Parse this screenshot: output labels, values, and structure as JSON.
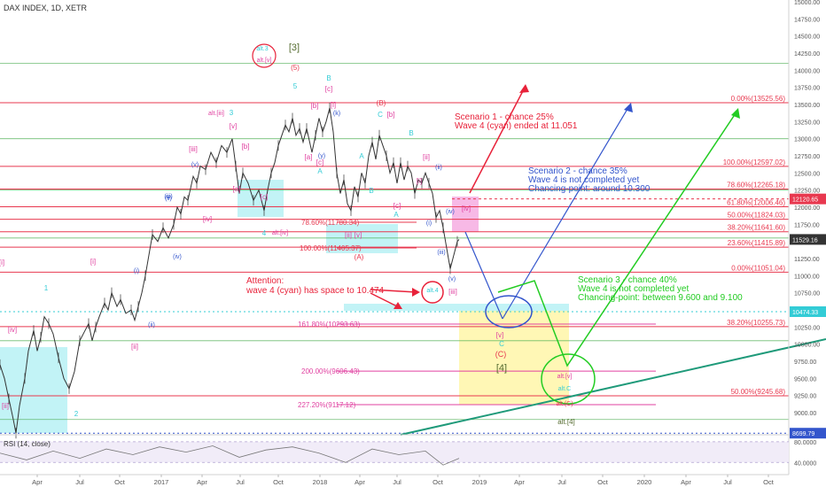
{
  "header": {
    "title": "DAX INDEX, 1D, XETR"
  },
  "colors": {
    "fib": "#e8384f",
    "ma": "#4caf50",
    "cyan": "#33ccd6",
    "magenta": "#e040a0",
    "red": "#e8223a",
    "blue": "#3355cc",
    "green": "#22cc22",
    "teal": "#1f9a7a",
    "price": "#333333",
    "cyan_box": "#a8eef2",
    "yellow_box": "#fff6a8",
    "pink_box": "#f5a8e0"
  },
  "chart_data": {
    "type": "line",
    "title": "DAX INDEX, 1D, XETR",
    "x_ticks": [
      "Apr",
      "Jul",
      "Oct",
      "2017",
      "Apr",
      "Jul",
      "Oct",
      "2018",
      "Apr",
      "Jul",
      "Oct",
      "2019",
      "Apr",
      "Jul",
      "Oct",
      "2020",
      "Apr",
      "Jul",
      "Oct"
    ],
    "y_ticks": [
      "15000.00",
      "14750.00",
      "14500.00",
      "14250.00",
      "14000.00",
      "13750.00",
      "13500.00",
      "13250.00",
      "13000.00",
      "12750.00",
      "12500.00",
      "12250.00",
      "12000.00",
      "11750.00",
      "11500.00",
      "11250.00",
      "11000.00",
      "10750.00",
      "10500.00",
      "10250.00",
      "10000.00",
      "9750.00",
      "9500.00",
      "9250.00",
      "9000.00"
    ],
    "ylim": [
      8600,
      15000
    ],
    "price_badges": [
      {
        "text": "12120.65",
        "value": 12120.65,
        "color": "#e8384f"
      },
      {
        "text": "11529.16",
        "value": 11529.16,
        "color": "#333333"
      },
      {
        "text": "10474.33",
        "value": 10474.33,
        "color": "#33ccd6"
      },
      {
        "text": "8699.79",
        "value": 8699.79,
        "color": "#3355cc"
      }
    ],
    "price_path": [
      [
        0,
        9700
      ],
      [
        5,
        9500
      ],
      [
        10,
        9200
      ],
      [
        15,
        8900
      ],
      [
        18,
        8700
      ],
      [
        22,
        9100
      ],
      [
        28,
        9500
      ],
      [
        32,
        9900
      ],
      [
        38,
        10200
      ],
      [
        42,
        9900
      ],
      [
        46,
        10100
      ],
      [
        50,
        10400
      ],
      [
        55,
        10300
      ],
      [
        60,
        10150
      ],
      [
        66,
        9800
      ],
      [
        72,
        9500
      ],
      [
        78,
        9350
      ],
      [
        84,
        9600
      ],
      [
        90,
        10050
      ],
      [
        96,
        10200
      ],
      [
        100,
        10300
      ],
      [
        104,
        10050
      ],
      [
        108,
        10250
      ],
      [
        112,
        10400
      ],
      [
        118,
        10600
      ],
      [
        122,
        10500
      ],
      [
        126,
        10750
      ],
      [
        132,
        10550
      ],
      [
        136,
        10650
      ],
      [
        142,
        10450
      ],
      [
        148,
        10500
      ],
      [
        152,
        10350
      ],
      [
        156,
        10550
      ],
      [
        160,
        10750
      ],
      [
        164,
        11000
      ],
      [
        168,
        11300
      ],
      [
        172,
        11600
      ],
      [
        178,
        11500
      ],
      [
        184,
        11700
      ],
      [
        190,
        11550
      ],
      [
        196,
        11750
      ],
      [
        200,
        12000
      ],
      [
        204,
        11900
      ],
      [
        208,
        12150
      ],
      [
        212,
        12100
      ],
      [
        218,
        12450
      ],
      [
        222,
        12350
      ],
      [
        226,
        12600
      ],
      [
        232,
        12550
      ],
      [
        238,
        12800
      ],
      [
        244,
        12650
      ],
      [
        250,
        12900
      ],
      [
        256,
        12800
      ],
      [
        262,
        13000
      ],
      [
        266,
        12600
      ],
      [
        270,
        12200
      ],
      [
        274,
        12500
      ],
      [
        280,
        12350
      ],
      [
        286,
        12100
      ],
      [
        292,
        12250
      ],
      [
        298,
        11950
      ],
      [
        302,
        12250
      ],
      [
        306,
        12500
      ],
      [
        310,
        12650
      ],
      [
        314,
        12900
      ],
      [
        318,
        13050
      ],
      [
        322,
        13200
      ],
      [
        326,
        13100
      ],
      [
        330,
        13300
      ],
      [
        334,
        13050
      ],
      [
        338,
        13150
      ],
      [
        342,
        12950
      ],
      [
        346,
        13150
      ],
      [
        352,
        12800
      ],
      [
        356,
        13050
      ],
      [
        360,
        13300
      ],
      [
        364,
        13100
      ],
      [
        368,
        13250
      ],
      [
        372,
        13450
      ],
      [
        376,
        13100
      ],
      [
        380,
        12500
      ],
      [
        384,
        12200
      ],
      [
        388,
        12400
      ],
      [
        392,
        12050
      ],
      [
        396,
        11950
      ],
      [
        400,
        12300
      ],
      [
        404,
        12150
      ],
      [
        408,
        12500
      ],
      [
        412,
        12350
      ],
      [
        416,
        12750
      ],
      [
        420,
        12950
      ],
      [
        424,
        12700
      ],
      [
        428,
        13050
      ],
      [
        432,
        12900
      ],
      [
        436,
        12750
      ],
      [
        440,
        12500
      ],
      [
        444,
        12650
      ],
      [
        448,
        12350
      ],
      [
        452,
        12650
      ],
      [
        456,
        12400
      ],
      [
        460,
        12600
      ],
      [
        464,
        12500
      ],
      [
        468,
        12200
      ],
      [
        472,
        12400
      ],
      [
        476,
        12350
      ],
      [
        480,
        12500
      ],
      [
        484,
        12350
      ],
      [
        488,
        12200
      ],
      [
        492,
        11850
      ],
      [
        496,
        11950
      ],
      [
        500,
        11700
      ],
      [
        504,
        11400
      ],
      [
        508,
        11100
      ],
      [
        512,
        11300
      ],
      [
        516,
        11500
      ],
      [
        518,
        11529
      ]
    ],
    "rsi_path": [
      [
        0,
        58
      ],
      [
        30,
        45
      ],
      [
        60,
        62
      ],
      [
        90,
        48
      ],
      [
        120,
        66
      ],
      [
        150,
        55
      ],
      [
        180,
        70
      ],
      [
        210,
        60
      ],
      [
        240,
        72
      ],
      [
        270,
        50
      ],
      [
        300,
        64
      ],
      [
        330,
        70
      ],
      [
        360,
        58
      ],
      [
        390,
        40
      ],
      [
        420,
        66
      ],
      [
        450,
        55
      ],
      [
        480,
        62
      ],
      [
        500,
        35
      ],
      [
        518,
        48
      ]
    ],
    "fib_levels": [
      {
        "label": "0.00%(13525.56)",
        "value": 13525.56,
        "x1": 365,
        "color": "#e8384f"
      },
      {
        "label": "100.00%(12597.02)",
        "value": 12597.02,
        "x1": 505,
        "color": "#e8384f"
      },
      {
        "label": "78.60%(12265.18)",
        "value": 12265.18,
        "x1": 505,
        "color": "#e8384f"
      },
      {
        "label": "61.80%(12006.46)",
        "value": 12006.46,
        "x1": 505,
        "color": "#e8384f"
      },
      {
        "label": "50.00%(11824.03)",
        "value": 11824.03,
        "x1": 505,
        "color": "#e8384f"
      },
      {
        "label": "38.20%(11641.60)",
        "value": 11641.6,
        "x1": 505,
        "color": "#e8384f"
      },
      {
        "label": "23.60%(11415.89)",
        "value": 11415.89,
        "x1": 505,
        "color": "#e8384f"
      },
      {
        "label": "0.00%(11051.04)",
        "value": 11051.04,
        "x1": 480,
        "color": "#e8384f"
      },
      {
        "label": "38.20%(10255.73)",
        "value": 10255.73,
        "x1": 160,
        "color": "#e8384f"
      },
      {
        "label": "50.00%(9245.68)",
        "value": 9245.68,
        "x1": 160,
        "color": "#e8384f"
      }
    ],
    "ext_levels": [
      {
        "label": "78.60%(11780.34)",
        "value": 11780.34,
        "x0": 380,
        "x1": 470,
        "lx": 340,
        "color": "#e8384f"
      },
      {
        "label": "100.00%(11405.37)",
        "value": 11405.37,
        "x0": 380,
        "x1": 470,
        "lx": 338,
        "color": "#e8384f"
      },
      {
        "label": "161.80%(10293.63)",
        "value": 10293.63,
        "x0": 380,
        "x1": 740,
        "lx": 336,
        "color": "#e040a0"
      },
      {
        "label": "200.00%(9606.43)",
        "value": 9606.43,
        "x0": 380,
        "x1": 740,
        "lx": 340,
        "color": "#e040a0"
      },
      {
        "label": "227.20%(9117.12)",
        "value": 9117.12,
        "x0": 380,
        "x1": 740,
        "lx": 336,
        "color": "#e040a0"
      }
    ],
    "green_levels": [
      14100,
      13000,
      12250,
      11550,
      10050,
      8900
    ],
    "scenarios": [
      {
        "lines": [
          "Scenario 1 - chance 25%",
          "Wave 4 (cyan) ended at 11.051"
        ],
        "x": 513,
        "y": 135,
        "color": "#e8223a"
      },
      {
        "lines": [
          "Scenario 2 - chance 35%",
          "Wave 4 is not completed yet",
          "Chancing-point: around 10.300"
        ],
        "x": 596,
        "y": 196,
        "color": "#3355cc"
      },
      {
        "lines": [
          "Scenario 3 - chance 40%",
          "Wave 4 is not completed yet",
          "Chancing-point: between 9.600 and 9.100"
        ],
        "x": 652,
        "y": 319,
        "color": "#22cc22"
      }
    ],
    "attention": {
      "lines": [
        "Attention:",
        "wave 4 (cyan) has space to 10.474"
      ],
      "x": 278,
      "y": 320,
      "color": "#e8223a"
    },
    "wave_labels": [
      {
        "t": "[3]",
        "x": 332,
        "y": 57,
        "c": "#556b2f",
        "s": 11
      },
      {
        "t": "alt.3",
        "x": 296,
        "y": 57,
        "c": "#33ccd6",
        "s": 7
      },
      {
        "t": "alt.[v]",
        "x": 298,
        "y": 70,
        "c": "#e040a0",
        "s": 7
      },
      {
        "t": "(5)",
        "x": 333,
        "y": 79,
        "c": "#e8384f",
        "s": 8
      },
      {
        "t": "5",
        "x": 333,
        "y": 100,
        "c": "#33ccd6",
        "s": 8
      },
      {
        "t": "B",
        "x": 371,
        "y": 91,
        "c": "#33ccd6",
        "s": 8
      },
      {
        "t": "[c]",
        "x": 371,
        "y": 103,
        "c": "#e040a0",
        "s": 8
      },
      {
        "t": "(B)",
        "x": 430,
        "y": 119,
        "c": "#e8384f",
        "s": 8
      },
      {
        "t": "C",
        "x": 429,
        "y": 132,
        "c": "#33ccd6",
        "s": 8
      },
      {
        "t": "[b]",
        "x": 441,
        "y": 132,
        "c": "#e040a0",
        "s": 8
      },
      {
        "t": "B",
        "x": 464,
        "y": 153,
        "c": "#33ccd6",
        "s": 8
      },
      {
        "t": "alt.[iii]",
        "x": 244,
        "y": 130,
        "c": "#e040a0",
        "s": 7
      },
      {
        "t": "3",
        "x": 261,
        "y": 130,
        "c": "#33ccd6",
        "s": 8
      },
      {
        "t": "[v]",
        "x": 263,
        "y": 145,
        "c": "#e040a0",
        "s": 8
      },
      {
        "t": "[iii]",
        "x": 218,
        "y": 171,
        "c": "#e040a0",
        "s": 8
      },
      {
        "t": "(v)",
        "x": 220,
        "y": 188,
        "c": "#3355cc",
        "s": 7
      },
      {
        "t": "[b]",
        "x": 277,
        "y": 168,
        "c": "#e040a0",
        "s": 8
      },
      {
        "t": "[a]",
        "x": 267,
        "y": 216,
        "c": "#e040a0",
        "s": 8
      },
      {
        "t": "[c]",
        "x": 298,
        "y": 225,
        "c": "#e040a0",
        "s": 8
      },
      {
        "t": "(iii)",
        "x": 190,
        "y": 224,
        "c": "#3355cc",
        "s": 7
      },
      {
        "t": "[iv]",
        "x": 234,
        "y": 250,
        "c": "#e040a0",
        "s": 8
      },
      {
        "t": "4",
        "x": 298,
        "y": 266,
        "c": "#33ccd6",
        "s": 8
      },
      {
        "t": "alt.[iv]",
        "x": 316,
        "y": 265,
        "c": "#e040a0",
        "s": 7
      },
      {
        "t": "[a]",
        "x": 348,
        "y": 180,
        "c": "#e040a0",
        "s": 8
      },
      {
        "t": "[c]",
        "x": 361,
        "y": 186,
        "c": "#e040a0",
        "s": 8
      },
      {
        "t": "A",
        "x": 361,
        "y": 196,
        "c": "#33ccd6",
        "s": 8
      },
      {
        "t": "(y)",
        "x": 363,
        "y": 178,
        "c": "#3355cc",
        "s": 7
      },
      {
        "t": "A",
        "x": 408,
        "y": 179,
        "c": "#33ccd6",
        "s": 8
      },
      {
        "t": "B",
        "x": 419,
        "y": 218,
        "c": "#33ccd6",
        "s": 8
      },
      {
        "t": "[c]",
        "x": 448,
        "y": 235,
        "c": "#e040a0",
        "s": 8
      },
      {
        "t": "A",
        "x": 447,
        "y": 245,
        "c": "#33ccd6",
        "s": 8
      },
      {
        "t": "[ii]",
        "x": 393,
        "y": 268,
        "c": "#e040a0",
        "s": 8
      },
      {
        "t": "[v]",
        "x": 404,
        "y": 268,
        "c": "#e040a0",
        "s": 8
      },
      {
        "t": "(A)",
        "x": 405,
        "y": 293,
        "c": "#e8384f",
        "s": 8
      },
      {
        "t": "[i]",
        "x": 473,
        "y": 207,
        "c": "#e040a0",
        "s": 8
      },
      {
        "t": "(i)",
        "x": 484,
        "y": 254,
        "c": "#3355cc",
        "s": 7
      },
      {
        "t": "[ii]",
        "x": 481,
        "y": 180,
        "c": "#e040a0",
        "s": 8
      },
      {
        "t": "(ii)",
        "x": 495,
        "y": 191,
        "c": "#3355cc",
        "s": 7
      },
      {
        "t": "(iv)",
        "x": 508,
        "y": 241,
        "c": "#3355cc",
        "s": 7
      },
      {
        "t": "(iii)",
        "x": 498,
        "y": 287,
        "c": "#3355cc",
        "s": 7
      },
      {
        "t": "(v)",
        "x": 510,
        "y": 317,
        "c": "#3355cc",
        "s": 7
      },
      {
        "t": "[iii]",
        "x": 511,
        "y": 332,
        "c": "#e040a0",
        "s": 8
      },
      {
        "t": "[iv]",
        "x": 526,
        "y": 238,
        "c": "#e040a0",
        "s": 8
      },
      {
        "t": "alt.4",
        "x": 488,
        "y": 330,
        "c": "#33ccd6",
        "s": 7
      },
      {
        "t": "[v]",
        "x": 564,
        "y": 381,
        "c": "#e040a0",
        "s": 8
      },
      {
        "t": "C",
        "x": 566,
        "y": 391,
        "c": "#33ccd6",
        "s": 8
      },
      {
        "t": "(C)",
        "x": 565,
        "y": 403,
        "c": "#e8384f",
        "s": 9
      },
      {
        "t": "[4]",
        "x": 566,
        "y": 419,
        "c": "#556b2f",
        "s": 11
      },
      {
        "t": "alt.[v]",
        "x": 637,
        "y": 427,
        "c": "#e040a0",
        "s": 7
      },
      {
        "t": "alt.C",
        "x": 637,
        "y": 441,
        "c": "#33ccd6",
        "s": 7
      },
      {
        "t": "alt.(C)",
        "x": 637,
        "y": 458,
        "c": "#e8384f",
        "s": 7
      },
      {
        "t": "alt.[4]",
        "x": 639,
        "y": 479,
        "c": "#556b2f",
        "s": 8
      },
      {
        "t": "1",
        "x": 52,
        "y": 328,
        "c": "#33ccd6",
        "s": 8
      },
      {
        "t": "2",
        "x": 86,
        "y": 470,
        "c": "#33ccd6",
        "s": 8
      },
      {
        "t": "[i]",
        "x": 105,
        "y": 298,
        "c": "#e040a0",
        "s": 8
      },
      {
        "t": "[iv]",
        "x": 14,
        "y": 375,
        "c": "#e040a0",
        "s": 8
      },
      {
        "t": "[ii]",
        "x": 6,
        "y": 461,
        "c": "#e040a0",
        "s": 8
      },
      {
        "t": "[i]",
        "x": 2,
        "y": 299,
        "c": "#e040a0",
        "s": 8
      },
      {
        "t": "(i)",
        "x": 154,
        "y": 308,
        "c": "#3355cc",
        "s": 7
      },
      {
        "t": "(ii)",
        "x": 171,
        "y": 369,
        "c": "#3355cc",
        "s": 7
      },
      {
        "t": "[ii]",
        "x": 152,
        "y": 394,
        "c": "#e040a0",
        "s": 8
      },
      {
        "t": "(iv)",
        "x": 200,
        "y": 292,
        "c": "#3355cc",
        "s": 7
      },
      {
        "t": "(ii)",
        "x": 190,
        "y": 226,
        "c": "#3355cc",
        "s": 7
      },
      {
        "t": "[b]",
        "x": 355,
        "y": 122,
        "c": "#e040a0",
        "s": 8
      },
      {
        "t": "[i]",
        "x": 376,
        "y": 121,
        "c": "#e040a0",
        "s": 8
      },
      {
        "t": "(k)",
        "x": 380,
        "y": 130,
        "c": "#3355cc",
        "s": 7
      }
    ],
    "rsi": {
      "label": "RSI (14, close)",
      "ticks": [
        "80.0000",
        "40.0000"
      ],
      "ylim": [
        20,
        90
      ]
    }
  }
}
